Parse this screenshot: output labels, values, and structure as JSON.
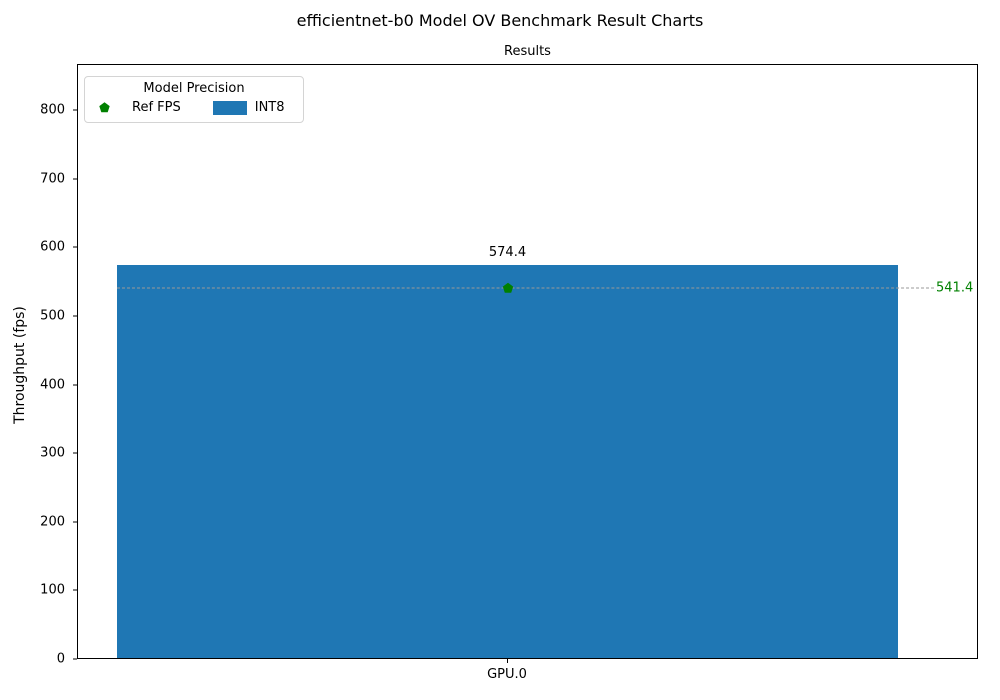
{
  "figure": {
    "title": "efficientnet-b0 Model OV Benchmark Result Charts"
  },
  "legend": {
    "title": "Model Precision",
    "items": [
      {
        "label": "Ref FPS",
        "marker": "pentagon",
        "color": "#008000"
      },
      {
        "label": "INT8",
        "marker": "rect",
        "color": "#1f77b4"
      }
    ]
  },
  "chart_data": {
    "type": "bar",
    "title": "Results",
    "xlabel": "",
    "ylabel": "Throughput (fps)",
    "categories": [
      "GPU.0"
    ],
    "series": [
      {
        "name": "INT8",
        "values": [
          574.4
        ],
        "bar_labels": [
          "574.4"
        ],
        "color": "#1f77b4"
      }
    ],
    "reference_line": {
      "name": "Ref FPS",
      "value": 541.4,
      "label": "541.4",
      "style": "dashed",
      "line_color": "#999999",
      "marker": "pentagon",
      "marker_color": "#008000",
      "label_color": "#008000"
    },
    "ylim": [
      0,
      867
    ],
    "yticks": [
      0,
      100,
      200,
      300,
      400,
      500,
      600,
      700,
      800
    ],
    "grid": false,
    "legend_position": "upper-left"
  }
}
